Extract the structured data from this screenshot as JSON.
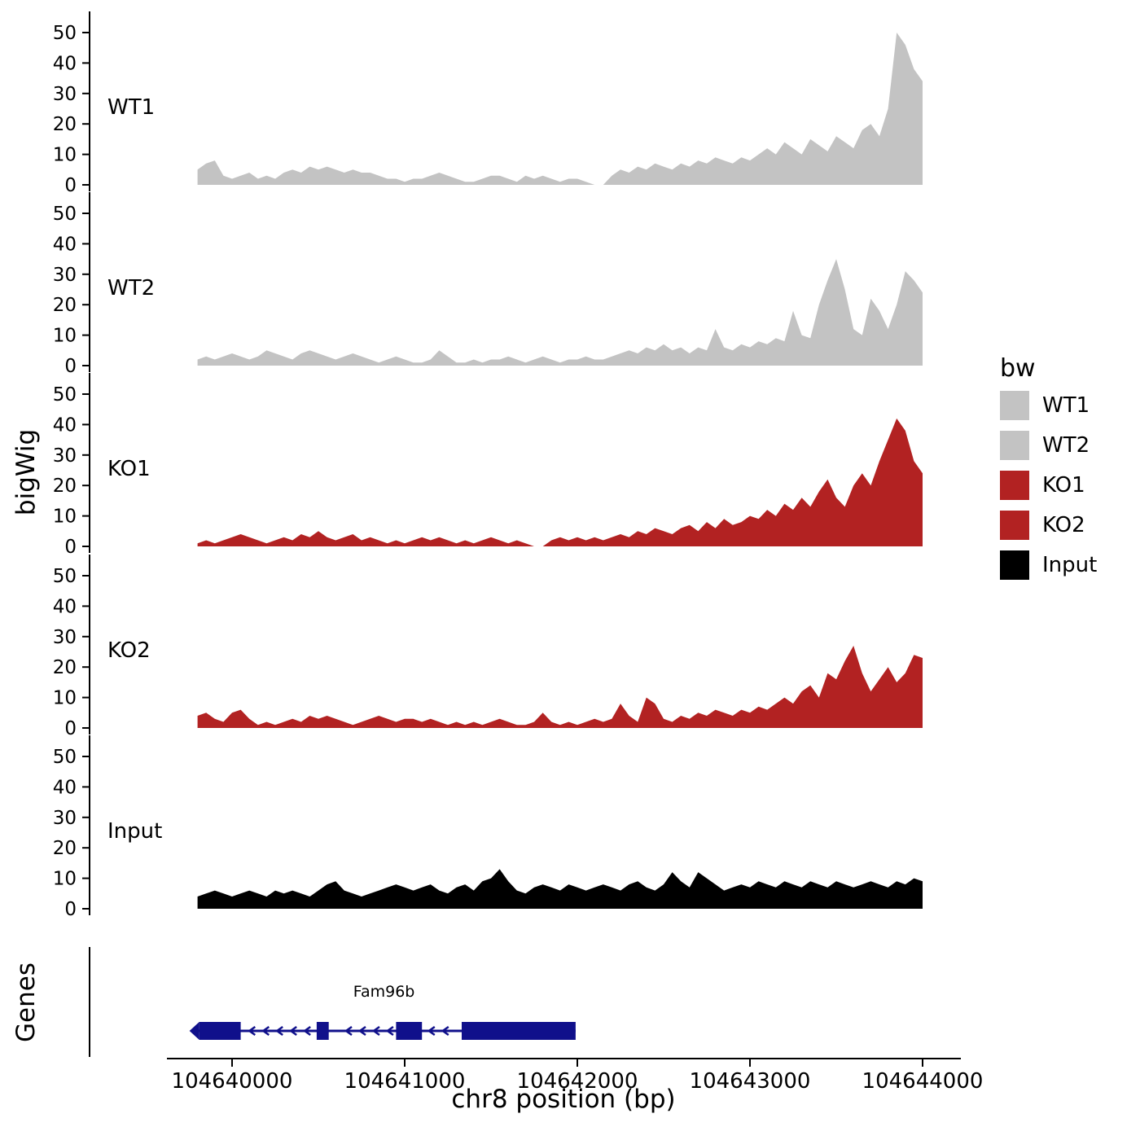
{
  "y_axis_title": "bigWig",
  "genes_axis_title": "Genes",
  "x_axis": {
    "title": "chr8 position (bp)",
    "ticks": [
      104640000,
      104641000,
      104642000,
      104643000,
      104644000
    ],
    "tick_labels": [
      "104640000",
      "104641000",
      "104642000",
      "104643000",
      "104644000"
    ]
  },
  "y_ticks": [
    0,
    10,
    20,
    30,
    40,
    50
  ],
  "legend": {
    "title": "bw",
    "items": [
      {
        "label": "WT1",
        "color": "#c3c3c3"
      },
      {
        "label": "WT2",
        "color": "#c3c3c3"
      },
      {
        "label": "KO1",
        "color": "#b22222"
      },
      {
        "label": "KO2",
        "color": "#b22222"
      },
      {
        "label": "Input",
        "color": "#000000"
      }
    ]
  },
  "chart_data": {
    "type": "area",
    "title": "",
    "xlabel": "chr8 position (bp)",
    "ylabel": "bigWig",
    "xlim": [
      104639560,
      104644220
    ],
    "ylim": [
      0,
      50
    ],
    "x_start": 104639800,
    "x_step": 50,
    "tracks": [
      {
        "name": "WT1",
        "color": "#c3c3c3",
        "values": [
          5,
          7,
          8,
          3,
          2,
          3,
          4,
          2,
          3,
          2,
          4,
          5,
          4,
          6,
          5,
          6,
          5,
          4,
          5,
          4,
          4,
          3,
          2,
          2,
          1,
          2,
          2,
          3,
          4,
          3,
          2,
          1,
          1,
          2,
          3,
          3,
          2,
          1,
          3,
          2,
          3,
          2,
          1,
          2,
          2,
          1,
          0,
          0,
          3,
          5,
          4,
          6,
          5,
          7,
          6,
          5,
          7,
          6,
          8,
          7,
          9,
          8,
          7,
          9,
          8,
          10,
          12,
          10,
          14,
          12,
          10,
          15,
          13,
          11,
          16,
          14,
          12,
          18,
          20,
          16,
          25,
          50,
          46,
          38,
          34
        ]
      },
      {
        "name": "WT2",
        "color": "#c3c3c3",
        "values": [
          2,
          3,
          2,
          3,
          4,
          3,
          2,
          3,
          5,
          4,
          3,
          2,
          4,
          5,
          4,
          3,
          2,
          3,
          4,
          3,
          2,
          1,
          2,
          3,
          2,
          1,
          1,
          2,
          5,
          3,
          1,
          1,
          2,
          1,
          2,
          2,
          3,
          2,
          1,
          2,
          3,
          2,
          1,
          2,
          2,
          3,
          2,
          2,
          3,
          4,
          5,
          4,
          6,
          5,
          7,
          5,
          6,
          4,
          6,
          5,
          12,
          6,
          5,
          7,
          6,
          8,
          7,
          9,
          8,
          18,
          10,
          9,
          20,
          28,
          35,
          25,
          12,
          10,
          22,
          18,
          12,
          20,
          31,
          28,
          24
        ]
      },
      {
        "name": "KO1",
        "color": "#b22222",
        "values": [
          1,
          2,
          1,
          2,
          3,
          4,
          3,
          2,
          1,
          2,
          3,
          2,
          4,
          3,
          5,
          3,
          2,
          3,
          4,
          2,
          3,
          2,
          1,
          2,
          1,
          2,
          3,
          2,
          3,
          2,
          1,
          2,
          1,
          2,
          3,
          2,
          1,
          2,
          1,
          0,
          0,
          2,
          3,
          2,
          3,
          2,
          3,
          2,
          3,
          4,
          3,
          5,
          4,
          6,
          5,
          4,
          6,
          7,
          5,
          8,
          6,
          9,
          7,
          8,
          10,
          9,
          12,
          10,
          14,
          12,
          16,
          13,
          18,
          22,
          16,
          13,
          20,
          24,
          20,
          28,
          35,
          42,
          38,
          28,
          24
        ]
      },
      {
        "name": "KO2",
        "color": "#b22222",
        "values": [
          4,
          5,
          3,
          2,
          5,
          6,
          3,
          1,
          2,
          1,
          2,
          3,
          2,
          4,
          3,
          4,
          3,
          2,
          1,
          2,
          3,
          4,
          3,
          2,
          3,
          3,
          2,
          3,
          2,
          1,
          2,
          1,
          2,
          1,
          2,
          3,
          2,
          1,
          1,
          2,
          5,
          2,
          1,
          2,
          1,
          2,
          3,
          2,
          3,
          8,
          4,
          2,
          10,
          8,
          3,
          2,
          4,
          3,
          5,
          4,
          6,
          5,
          4,
          6,
          5,
          7,
          6,
          8,
          10,
          8,
          12,
          14,
          10,
          18,
          16,
          22,
          27,
          18,
          12,
          16,
          20,
          15,
          18,
          24,
          23
        ]
      },
      {
        "name": "Input",
        "color": "#000000",
        "values": [
          4,
          5,
          6,
          5,
          4,
          5,
          6,
          5,
          4,
          6,
          5,
          6,
          5,
          4,
          6,
          8,
          9,
          6,
          5,
          4,
          5,
          6,
          7,
          8,
          7,
          6,
          7,
          8,
          6,
          5,
          7,
          8,
          6,
          9,
          10,
          13,
          9,
          6,
          5,
          7,
          8,
          7,
          6,
          8,
          7,
          6,
          7,
          8,
          7,
          6,
          8,
          9,
          7,
          6,
          8,
          12,
          9,
          7,
          12,
          10,
          8,
          6,
          7,
          8,
          7,
          9,
          8,
          7,
          9,
          8,
          7,
          9,
          8,
          7,
          9,
          8,
          7,
          8,
          9,
          8,
          7,
          9,
          8,
          10,
          9
        ]
      }
    ],
    "gene": {
      "name": "Fam96b",
      "strand": "-",
      "start": 104639810,
      "end": 104641990,
      "color": "#10108b",
      "exons": [
        [
          104639810,
          104640050
        ],
        [
          104640490,
          104640560
        ],
        [
          104640950,
          104641100
        ],
        [
          104641330,
          104641990
        ]
      ]
    }
  }
}
